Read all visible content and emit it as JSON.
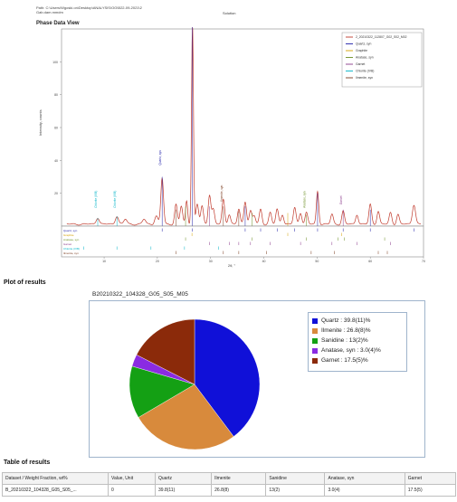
{
  "header": {
    "path_line1": "Path: C:\\Users\\Wgoski.on\\Desktop\\ANALYSIS\\OG\\B22-09-2021\\2",
    "path_line2": "Gab.dam.mmdm",
    "solution": "Solution"
  },
  "phase_view": {
    "title": "Phase Data View",
    "ylabel": "Intensity, counts",
    "xlabel": "2θ, °",
    "x_ticks": [
      "10",
      "20",
      "30",
      "40",
      "50",
      "60",
      "70"
    ],
    "y_ticks": [
      "20",
      "40",
      "60",
      "80",
      "100"
    ],
    "legend": [
      {
        "name": "2_20210322_112807_G02_S02_M02",
        "color": "#c0392b"
      },
      {
        "name": "Quartz, syn",
        "color": "#1f1fa8"
      },
      {
        "name": "Graphite",
        "color": "#d4a000"
      },
      {
        "name": "Anatase, syn",
        "color": "#6b8e23"
      },
      {
        "name": "Garnet",
        "color": "#8b3a8b"
      },
      {
        "name": "Chlorite (IVB)",
        "color": "#00b3c7"
      },
      {
        "name": "Ilmenite, syn",
        "color": "#7a3b1e"
      }
    ],
    "row_labels": [
      "Quartz, syn",
      "Graphite",
      "Anatase, syn",
      "Garnet",
      "Chlorite (IVB)",
      "Ilmenite, syn"
    ],
    "peak_labels": [
      {
        "text": "Quartz, syn",
        "color": "#1f1fa8"
      },
      {
        "text": "Chlorite (IVB)",
        "color": "#00b3c7"
      },
      {
        "text": "Chlorite (IVB)",
        "color": "#00b3c7"
      },
      {
        "text": "Ilmenite, syn",
        "color": "#7a3b1e"
      },
      {
        "text": "Garnet",
        "color": "#8b3a8b"
      },
      {
        "text": "Anatase, syn",
        "color": "#6b8e23"
      }
    ]
  },
  "plot_section": {
    "title": "Plot of results",
    "chart_title": "B20210322_104328_G05_S05_M05"
  },
  "chart_data": {
    "type": "pie",
    "title": "B20210322_104328_G05_S05_M05",
    "categories": [
      "Quartz",
      "Ilmenite",
      "Sanidine",
      "Anatase, syn",
      "Garnet"
    ],
    "values": [
      39.8,
      26.8,
      13,
      3.0,
      17.5
    ],
    "labels": [
      "Quartz : 39.8(11)%",
      "Ilmenite : 26.8(8)%",
      "Sanidine : 13(2)%",
      "Anatase, syn : 3.0(4)%",
      "Garnet : 17.5(5)%"
    ],
    "colors": [
      "#1010d8",
      "#d88a3c",
      "#14a014",
      "#8a2be2",
      "#8b2a0a"
    ],
    "legend_position": "right"
  },
  "table_section": {
    "title": "Table of results",
    "headers": [
      "Dataset / Weight Fraction, wt%",
      "Value, Unit",
      "Quartz",
      "Ilmenite",
      "Sanidine",
      "Anatase, syn",
      "Garnet"
    ],
    "rows": [
      [
        "B_20210322_104328_G05_S05_...",
        "0",
        "39.8(11)",
        "26.8(8)",
        "13(2)",
        "3.0(4)",
        "17.5(5)"
      ]
    ]
  }
}
